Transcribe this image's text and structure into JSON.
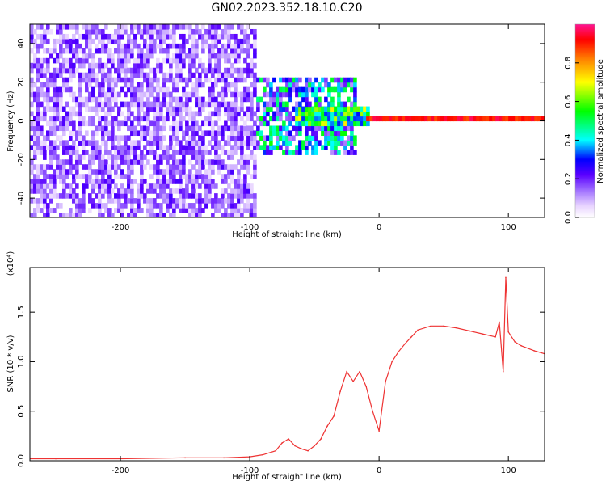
{
  "figure": {
    "title": "GN02.2023.352.18.10.C20"
  },
  "chart_data": [
    {
      "type": "heatmap",
      "title": "GN02.2023.352.18.10.C20",
      "xlabel": "Height of straight line (km)",
      "ylabel": "Frequency (Hz)",
      "xlim": [
        -270,
        128
      ],
      "ylim": [
        -50,
        50
      ],
      "x_ticks": [
        -200,
        -100,
        0,
        100
      ],
      "y_ticks": [
        -40,
        -20,
        0,
        20,
        40
      ],
      "colorbar": {
        "label": "Normalized spectral amplitude",
        "range": [
          0.0,
          1.0
        ],
        "ticks": [
          0.0,
          0.2,
          0.4,
          0.6,
          0.8
        ],
        "colors": [
          "#ffffff",
          "#e6ccff",
          "#b27fff",
          "#8a2be2",
          "#5a00ff",
          "#0000ff",
          "#00ffff",
          "#00ff00",
          "#ffff00",
          "#ff8000",
          "#ff0000",
          "#ff1493"
        ]
      },
      "regions": [
        {
          "description": "broadband noise",
          "x_range": [
            -270,
            -97
          ],
          "f_range": [
            -50,
            50
          ],
          "amplitude": 0.15
        },
        {
          "description": "transition",
          "x_range": [
            -97,
            -20
          ],
          "f_range": [
            -18,
            22
          ],
          "amplitude": 0.35
        },
        {
          "description": "strong band near 0 Hz",
          "x_range": [
            -65,
            -10
          ],
          "f_range": [
            -3,
            7
          ],
          "amplitude": 0.6
        },
        {
          "description": "narrow line at 0 Hz",
          "x_range": [
            -12,
            128
          ],
          "f_range": [
            -1,
            1
          ],
          "amplitude": 0.95
        }
      ]
    },
    {
      "type": "line",
      "xlabel": "Height of straight line (km)",
      "ylabel": "SNR (10 * v/v)",
      "y_scale_label": "(x10⁴)",
      "xlim": [
        -270,
        128
      ],
      "ylim": [
        0,
        1.95
      ],
      "x_ticks": [
        -200,
        -100,
        0,
        100
      ],
      "y_ticks": [
        0.0,
        0.5,
        1.0,
        1.5
      ],
      "series": [
        {
          "color": "#ee3333",
          "x": [
            -270,
            -250,
            -200,
            -150,
            -120,
            -100,
            -90,
            -80,
            -75,
            -70,
            -65,
            -60,
            -55,
            -50,
            -45,
            -40,
            -35,
            -30,
            -25,
            -20,
            -15,
            -10,
            -5,
            0,
            5,
            10,
            15,
            20,
            25,
            30,
            40,
            50,
            60,
            70,
            80,
            90,
            93,
            96,
            98,
            100,
            105,
            110,
            120,
            128
          ],
          "y": [
            0.02,
            0.02,
            0.02,
            0.03,
            0.03,
            0.04,
            0.06,
            0.1,
            0.18,
            0.22,
            0.15,
            0.12,
            0.1,
            0.15,
            0.22,
            0.35,
            0.45,
            0.7,
            0.9,
            0.8,
            0.9,
            0.75,
            0.5,
            0.3,
            0.8,
            1.0,
            1.1,
            1.18,
            1.25,
            1.32,
            1.36,
            1.36,
            1.34,
            1.31,
            1.28,
            1.25,
            1.4,
            0.9,
            1.85,
            1.3,
            1.2,
            1.16,
            1.11,
            1.08
          ]
        }
      ]
    }
  ]
}
